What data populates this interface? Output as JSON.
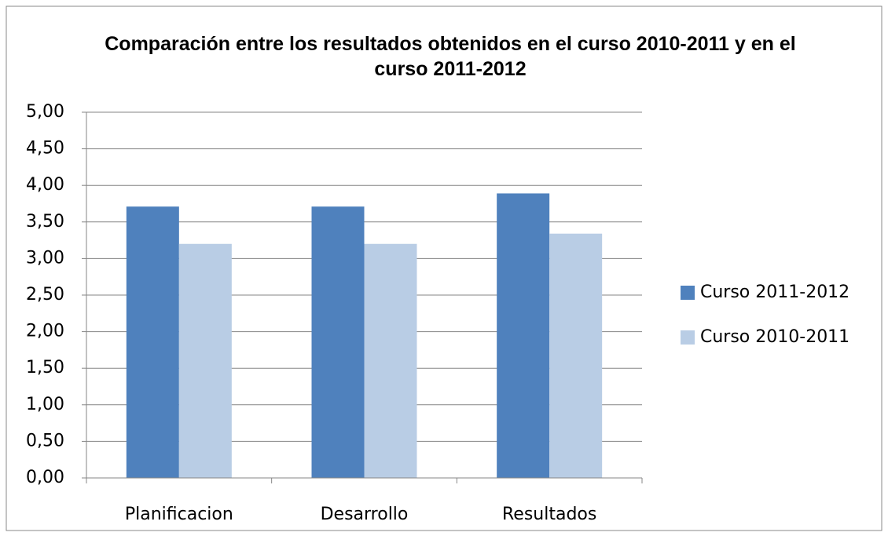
{
  "chart_data": {
    "type": "bar",
    "title": "Comparación entre los resultados obtenidos en el  curso 2010-2011  y en el curso 2011-2012",
    "categories": [
      "Planificacion",
      "Desarrollo",
      "Resultados"
    ],
    "series": [
      {
        "name": "Curso 2011-2012",
        "color": "#4f81bd",
        "values": [
          3.71,
          3.71,
          3.89
        ]
      },
      {
        "name": "Curso 2010-2011",
        "color": "#b9cde5",
        "values": [
          3.2,
          3.2,
          3.34
        ]
      }
    ],
    "ylim": [
      0,
      5
    ],
    "yticks": [
      {
        "value": 0,
        "label": "0,00"
      },
      {
        "value": 0.5,
        "label": "0,50"
      },
      {
        "value": 1,
        "label": "1,00"
      },
      {
        "value": 1.5,
        "label": "1,50"
      },
      {
        "value": 2,
        "label": "2,00"
      },
      {
        "value": 2.5,
        "label": "2,50"
      },
      {
        "value": 3,
        "label": "3,00"
      },
      {
        "value": 3.5,
        "label": "3,50"
      },
      {
        "value": 4,
        "label": "4,00"
      },
      {
        "value": 4.5,
        "label": "4,50"
      },
      {
        "value": 5,
        "label": "5,00"
      }
    ],
    "grid": true,
    "legend": "right"
  }
}
